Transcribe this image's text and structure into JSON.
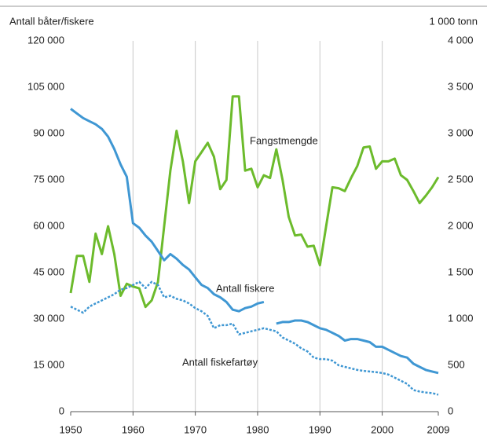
{
  "chart_data": {
    "type": "line",
    "y_label": "Antall båter/fiskere",
    "y2_label": "1 000 tonn",
    "x": [
      1950,
      1951,
      1952,
      1953,
      1954,
      1955,
      1956,
      1957,
      1958,
      1959,
      1960,
      1961,
      1962,
      1963,
      1964,
      1965,
      1966,
      1967,
      1968,
      1969,
      1970,
      1971,
      1972,
      1973,
      1974,
      1975,
      1976,
      1977,
      1978,
      1979,
      1980,
      1981,
      1982,
      1983,
      1984,
      1985,
      1986,
      1987,
      1988,
      1989,
      1990,
      1991,
      1992,
      1993,
      1994,
      1995,
      1996,
      1997,
      1998,
      1999,
      2000,
      2001,
      2002,
      2003,
      2004,
      2005,
      2006,
      2007,
      2008,
      2009
    ],
    "xlim": [
      1950,
      2009
    ],
    "xticks": [
      1950,
      1960,
      1970,
      1980,
      1990,
      2000,
      2009
    ],
    "ylim": [
      0,
      120000
    ],
    "yticks": [
      0,
      {
        "value": 15000,
        "label": "15 000"
      },
      {
        "value": 30000,
        "label": "30 000"
      },
      {
        "value": 45000,
        "label": "45 000"
      },
      {
        "value": 60000,
        "label": "60 000"
      },
      {
        "value": 75000,
        "label": "75 000"
      },
      {
        "value": 90000,
        "label": "90 000"
      },
      {
        "value": 105000,
        "label": "105 000"
      },
      {
        "value": 120000,
        "label": "120 000"
      }
    ],
    "y2lim": [
      0,
      4000
    ],
    "y2ticks": [
      0,
      500,
      {
        "value": 1000,
        "label": "1 000"
      },
      {
        "value": 1500,
        "label": "1 500"
      },
      {
        "value": 2000,
        "label": "2 000"
      },
      {
        "value": 2500,
        "label": "2 500"
      },
      {
        "value": 3000,
        "label": "3 000"
      },
      {
        "value": 3500,
        "label": "3 500"
      },
      {
        "value": 4000,
        "label": "4 000"
      }
    ],
    "grid": "x",
    "series": [
      {
        "name": "Fangstmengde",
        "color": "#6cbb2c",
        "axis": "y2",
        "style": "solid",
        "values": [
          1280,
          1680,
          1680,
          1400,
          1920,
          1700,
          2000,
          1700,
          1250,
          1380,
          1350,
          1330,
          1130,
          1200,
          1400,
          2000,
          2600,
          3030,
          2700,
          2250,
          2700,
          2800,
          2900,
          2750,
          2400,
          2500,
          3400,
          3400,
          2600,
          2620,
          2420,
          2550,
          2520,
          2830,
          2500,
          2100,
          1900,
          1910,
          1780,
          1790,
          1580,
          2000,
          2420,
          2410,
          2380,
          2520,
          2650,
          2850,
          2860,
          2620,
          2700,
          2700,
          2730,
          2550,
          2500,
          2380,
          2250,
          2330,
          2420,
          2530
        ]
      },
      {
        "name": "Antall fiskere",
        "color": "#3f97d3",
        "style": "solid",
        "values": [
          98000,
          96500,
          95000,
          94000,
          93000,
          91500,
          89000,
          85000,
          80000,
          76000,
          61000,
          59500,
          57000,
          55000,
          52000,
          49000,
          51000,
          49500,
          47500,
          46000,
          43500,
          41000,
          40000,
          38000,
          37000,
          35500,
          33000,
          32500,
          33500,
          34000,
          35000,
          35500,
          null,
          28500,
          29000,
          29000,
          29500,
          29500,
          29000,
          28000,
          27000,
          26500,
          25500,
          24500,
          23000,
          23500,
          23500,
          23000,
          22500,
          21000,
          21000,
          20000,
          19000,
          18000,
          17500,
          15500,
          14500,
          13500,
          13000,
          12500
        ]
      },
      {
        "name": "Antall fiskefartøy",
        "color": "#3f97d3",
        "style": "dotted",
        "values": [
          34000,
          33000,
          32000,
          34000,
          35000,
          36000,
          37000,
          38000,
          39500,
          40000,
          41000,
          42000,
          40000,
          42000,
          41000,
          37000,
          37500,
          36500,
          36000,
          35000,
          33500,
          32500,
          31000,
          27000,
          28000,
          28000,
          28500,
          25000,
          25500,
          26000,
          26500,
          27000,
          26500,
          26000,
          24000,
          23000,
          22000,
          20500,
          19500,
          17500,
          17000,
          17000,
          16500,
          15000,
          14500,
          14000,
          13500,
          13200,
          13000,
          12800,
          12500,
          12000,
          11000,
          10000,
          9000,
          7000,
          6500,
          6200,
          6000,
          5500
        ]
      }
    ]
  }
}
